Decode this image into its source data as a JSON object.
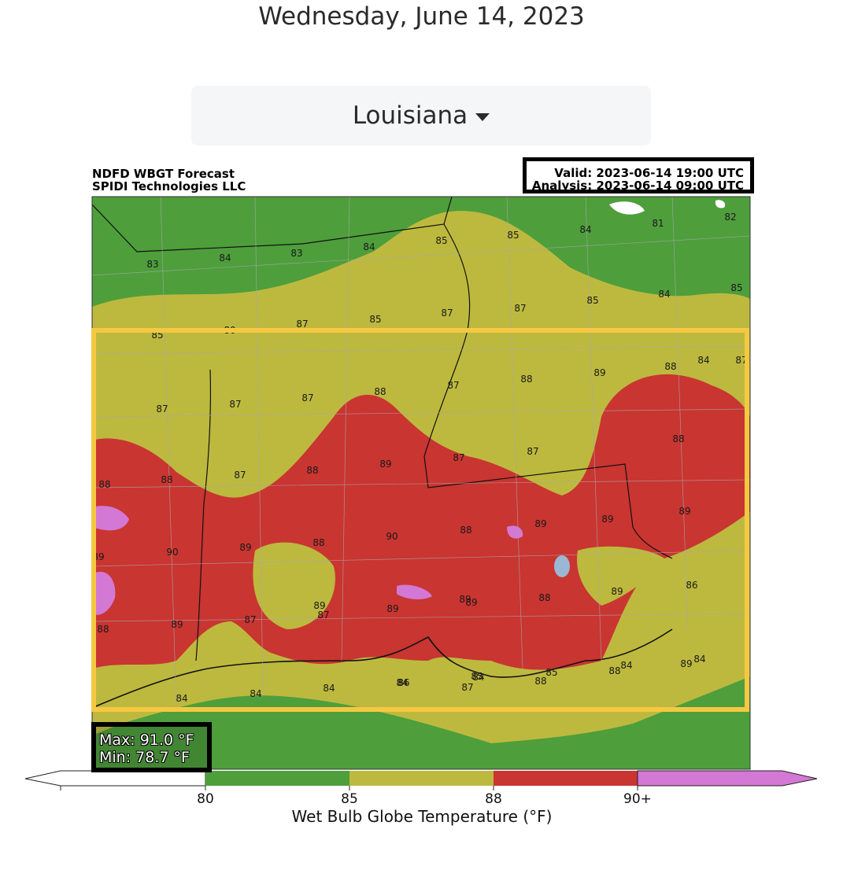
{
  "page": {
    "date": "Wednesday, June 14, 2023"
  },
  "selector": {
    "label": "Louisiana",
    "icon": "caret-down-icon"
  },
  "map": {
    "source_line1": "NDFD WBGT Forecast",
    "source_line2": "SPIDI Technologies LLC",
    "valid": "Valid: 2023-06-14 19:00 UTC",
    "analysis": "Analysis: 2023-06-14 09:00 UTC",
    "max": "Max: 91.0 °F",
    "min": "Min: 78.7 °F",
    "colorbar_label": "Wet Bulb Globe Temperature (°F)",
    "ticks": [
      "80",
      "85",
      "88",
      "90+"
    ],
    "colors": {
      "below80": "#ffffff",
      "80to85": "#4e9e3c",
      "85to88": "#bdb93f",
      "88to90": "#c93531",
      "90plus": "#d378d4",
      "water": "#9bb7d4",
      "highlight": "#f5c842"
    },
    "point_labels": [
      "83",
      "84",
      "83",
      "84",
      "85",
      "85",
      "84",
      "81",
      "82",
      "85",
      "84",
      "85",
      "87",
      "87",
      "85",
      "87",
      "80",
      "85",
      "88",
      "89",
      "88",
      "87",
      "88",
      "87",
      "87",
      "87",
      "88",
      "89",
      "89",
      "87",
      "87",
      "89",
      "88",
      "87",
      "88",
      "88",
      "89",
      "89",
      "89",
      "89",
      "89",
      "90",
      "90",
      "88",
      "88",
      "89",
      "89",
      "88",
      "86",
      "89",
      "88",
      "87",
      "87",
      "89",
      "89",
      "88",
      "88",
      "87",
      "86",
      "85",
      "84",
      "84",
      "84",
      "84",
      "84",
      "85",
      "84",
      "84",
      "84",
      "87"
    ]
  }
}
